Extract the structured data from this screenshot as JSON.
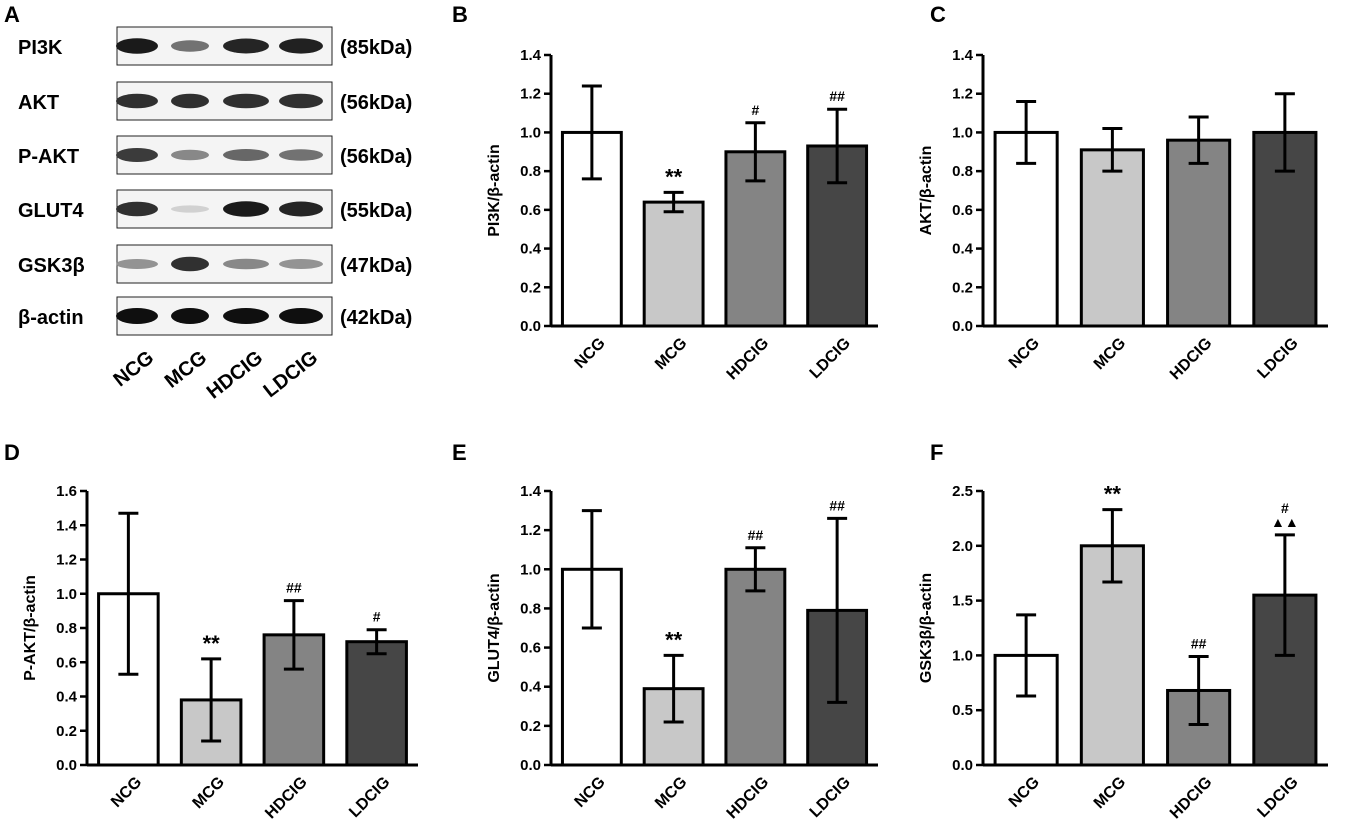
{
  "blot": {
    "panel": "A",
    "lanes": [
      "NCG",
      "MCG",
      "HDCIG",
      "LDCIG"
    ],
    "rows": [
      {
        "label": "PI3K",
        "kda": "(85kDa)",
        "intensity": [
          0.95,
          0.55,
          0.9,
          0.92
        ]
      },
      {
        "label": "AKT",
        "kda": "(56kDa)",
        "intensity": [
          0.85,
          0.85,
          0.85,
          0.85
        ]
      },
      {
        "label": "P-AKT",
        "kda": "(56kDa)",
        "intensity": [
          0.8,
          0.45,
          0.6,
          0.55
        ]
      },
      {
        "label": "GLUT4",
        "kda": "(55kDa)",
        "intensity": [
          0.85,
          0.12,
          0.95,
          0.9
        ]
      },
      {
        "label": "GSK3β",
        "kda": "(47kDa)",
        "intensity": [
          0.4,
          0.85,
          0.45,
          0.4
        ]
      },
      {
        "label": "β-actin",
        "kda": "(42kDa)",
        "intensity": [
          1,
          1,
          1,
          1
        ]
      }
    ]
  },
  "colors": {
    "NCG": "#ffffff",
    "MCG": "#c8c8c8",
    "HDCIG": "#848484",
    "LDCIG": "#464646",
    "stroke": "#000000"
  },
  "chart_data": [
    {
      "panel": "B",
      "type": "bar",
      "ylabel": "PI3K/β-actin",
      "categories": [
        "NCG",
        "MCG",
        "HDCIG",
        "LDCIG"
      ],
      "values": [
        1.0,
        0.64,
        0.9,
        0.93
      ],
      "errors": [
        0.24,
        0.05,
        0.15,
        0.19
      ],
      "annotations": [
        "",
        "**",
        "#",
        "##"
      ],
      "ylim": [
        0,
        1.4
      ],
      "yticks": [
        "0.0",
        "0.2",
        "0.4",
        "0.6",
        "0.8",
        "1.0",
        "1.2",
        "1.4"
      ]
    },
    {
      "panel": "C",
      "type": "bar",
      "ylabel": "AKT/β-actin",
      "categories": [
        "NCG",
        "MCG",
        "HDCIG",
        "LDCIG"
      ],
      "values": [
        1.0,
        0.91,
        0.96,
        1.0
      ],
      "errors": [
        0.16,
        0.11,
        0.12,
        0.2
      ],
      "annotations": [
        "",
        "",
        "",
        ""
      ],
      "ylim": [
        0,
        1.4
      ],
      "yticks": [
        "0.0",
        "0.2",
        "0.4",
        "0.6",
        "0.8",
        "1.0",
        "1.2",
        "1.4"
      ]
    },
    {
      "panel": "D",
      "type": "bar",
      "ylabel": "P-AKT/β-actin",
      "categories": [
        "NCG",
        "MCG",
        "HDCIG",
        "LDCIG"
      ],
      "values": [
        1.0,
        0.38,
        0.76,
        0.72
      ],
      "errors": [
        0.47,
        0.24,
        0.2,
        0.07
      ],
      "annotations": [
        "",
        "**",
        "##",
        "#"
      ],
      "ylim": [
        0,
        1.6
      ],
      "yticks": [
        "0.0",
        "0.2",
        "0.4",
        "0.6",
        "0.8",
        "1.0",
        "1.2",
        "1.4",
        "1.6"
      ]
    },
    {
      "panel": "E",
      "type": "bar",
      "ylabel": "GLUT4/β-actin",
      "categories": [
        "NCG",
        "MCG",
        "HDCIG",
        "LDCIG"
      ],
      "values": [
        1.0,
        0.39,
        1.0,
        0.79
      ],
      "errors": [
        0.3,
        0.17,
        0.11,
        0.47
      ],
      "annotations": [
        "",
        "**",
        "##",
        "##"
      ],
      "ylim": [
        0,
        1.4
      ],
      "yticks": [
        "0.0",
        "0.2",
        "0.4",
        "0.6",
        "0.8",
        "1.0",
        "1.2",
        "1.4"
      ]
    },
    {
      "panel": "F",
      "type": "bar",
      "ylabel": "GSK3β/β-actin",
      "categories": [
        "NCG",
        "MCG",
        "HDCIG",
        "LDCIG"
      ],
      "values": [
        1.0,
        2.0,
        0.68,
        1.55
      ],
      "errors": [
        0.37,
        0.33,
        0.31,
        0.55
      ],
      "annotations": [
        "",
        "**",
        "##",
        "#\n▲▲"
      ],
      "ylim": [
        0,
        2.5
      ],
      "yticks": [
        "0.0",
        "0.5",
        "1.0",
        "1.5",
        "2.0",
        "2.5"
      ]
    }
  ]
}
